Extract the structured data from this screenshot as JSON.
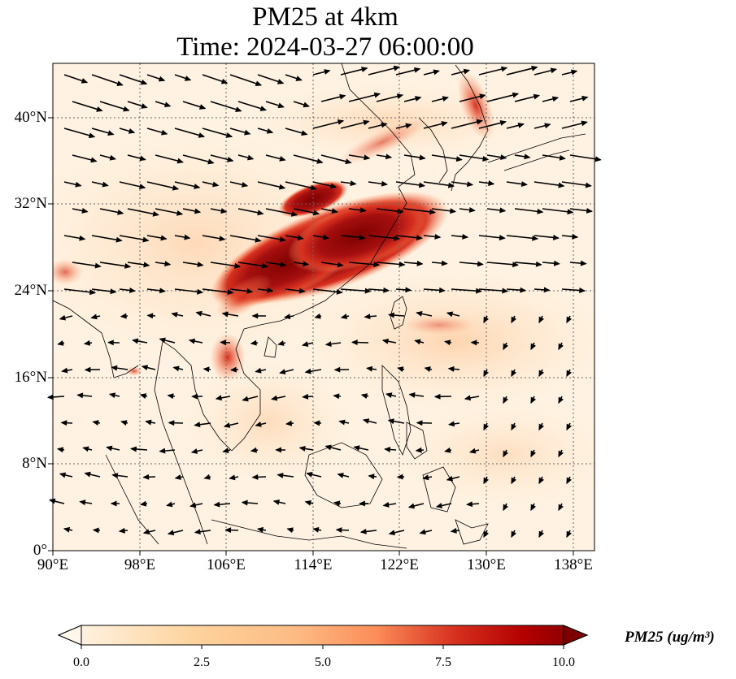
{
  "title_line1": "PM25 at 4km",
  "title_line2": "Time: 2024-03-27 06:00:00",
  "map": {
    "lon_range": [
      90,
      140
    ],
    "lat_range": [
      0,
      45
    ],
    "lat_ticks": [
      "0°",
      "8°N",
      "16°N",
      "24°N",
      "32°N",
      "40°N"
    ],
    "lon_ticks": [
      "90°E",
      "98°E",
      "106°E",
      "114°E",
      "122°E",
      "130°E",
      "138°E"
    ],
    "gridlines": "dotted",
    "colormap": "OrRd",
    "colors": {
      "low": "#fff7ec",
      "mid": "#fdbb84",
      "high": "#7f0000",
      "coast": "#000000"
    }
  },
  "colorbar": {
    "ticks": [
      "0.0",
      "2.5",
      "5.0",
      "7.5",
      "10.0"
    ],
    "range": [
      0,
      10
    ],
    "extend": "both",
    "label": "PM25 (ug/m³)"
  }
}
